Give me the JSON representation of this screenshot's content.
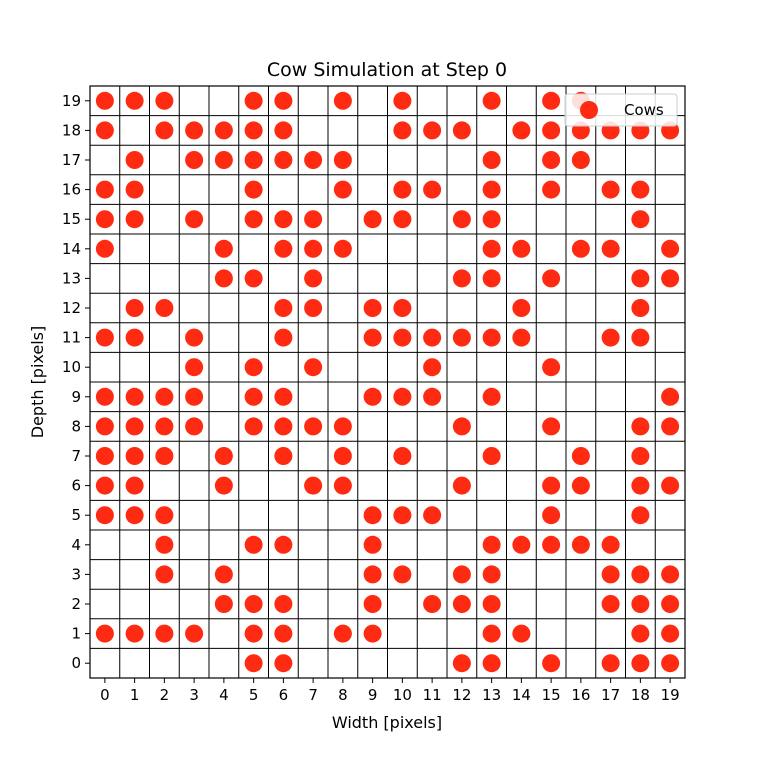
{
  "chart_data": {
    "type": "scatter",
    "title": "Cow Simulation at Step 0",
    "xlabel": "Width [pixels]",
    "ylabel": "Depth [pixels]",
    "xlim": [
      -0.5,
      19.5
    ],
    "ylim": [
      -0.5,
      19.5
    ],
    "xticks": [
      0,
      1,
      2,
      3,
      4,
      5,
      6,
      7,
      8,
      9,
      10,
      11,
      12,
      13,
      14,
      15,
      16,
      17,
      18,
      19
    ],
    "yticks": [
      0,
      1,
      2,
      3,
      4,
      5,
      6,
      7,
      8,
      9,
      10,
      11,
      12,
      13,
      14,
      15,
      16,
      17,
      18,
      19
    ],
    "grid": true,
    "legend_position": "top-right",
    "marker_color": "#ff2a12",
    "series": [
      {
        "name": "Cows",
        "points": [
          [
            0,
            19
          ],
          [
            1,
            19
          ],
          [
            2,
            19
          ],
          [
            5,
            19
          ],
          [
            6,
            19
          ],
          [
            8,
            19
          ],
          [
            10,
            19
          ],
          [
            13,
            19
          ],
          [
            15,
            19
          ],
          [
            16,
            19
          ],
          [
            0,
            18
          ],
          [
            2,
            18
          ],
          [
            3,
            18
          ],
          [
            4,
            18
          ],
          [
            5,
            18
          ],
          [
            6,
            18
          ],
          [
            10,
            18
          ],
          [
            11,
            18
          ],
          [
            12,
            18
          ],
          [
            14,
            18
          ],
          [
            15,
            18
          ],
          [
            16,
            18
          ],
          [
            17,
            18
          ],
          [
            18,
            18
          ],
          [
            19,
            18
          ],
          [
            1,
            17
          ],
          [
            3,
            17
          ],
          [
            4,
            17
          ],
          [
            5,
            17
          ],
          [
            6,
            17
          ],
          [
            7,
            17
          ],
          [
            8,
            17
          ],
          [
            13,
            17
          ],
          [
            15,
            17
          ],
          [
            16,
            17
          ],
          [
            0,
            16
          ],
          [
            1,
            16
          ],
          [
            5,
            16
          ],
          [
            8,
            16
          ],
          [
            10,
            16
          ],
          [
            11,
            16
          ],
          [
            13,
            16
          ],
          [
            15,
            16
          ],
          [
            17,
            16
          ],
          [
            18,
            16
          ],
          [
            0,
            15
          ],
          [
            1,
            15
          ],
          [
            3,
            15
          ],
          [
            5,
            15
          ],
          [
            6,
            15
          ],
          [
            7,
            15
          ],
          [
            9,
            15
          ],
          [
            10,
            15
          ],
          [
            12,
            15
          ],
          [
            13,
            15
          ],
          [
            18,
            15
          ],
          [
            0,
            14
          ],
          [
            4,
            14
          ],
          [
            6,
            14
          ],
          [
            7,
            14
          ],
          [
            8,
            14
          ],
          [
            13,
            14
          ],
          [
            14,
            14
          ],
          [
            16,
            14
          ],
          [
            17,
            14
          ],
          [
            19,
            14
          ],
          [
            4,
            13
          ],
          [
            5,
            13
          ],
          [
            7,
            13
          ],
          [
            12,
            13
          ],
          [
            13,
            13
          ],
          [
            15,
            13
          ],
          [
            18,
            13
          ],
          [
            19,
            13
          ],
          [
            1,
            12
          ],
          [
            2,
            12
          ],
          [
            6,
            12
          ],
          [
            7,
            12
          ],
          [
            9,
            12
          ],
          [
            10,
            12
          ],
          [
            14,
            12
          ],
          [
            18,
            12
          ],
          [
            0,
            11
          ],
          [
            1,
            11
          ],
          [
            3,
            11
          ],
          [
            6,
            11
          ],
          [
            9,
            11
          ],
          [
            10,
            11
          ],
          [
            11,
            11
          ],
          [
            12,
            11
          ],
          [
            13,
            11
          ],
          [
            14,
            11
          ],
          [
            17,
            11
          ],
          [
            18,
            11
          ],
          [
            3,
            10
          ],
          [
            5,
            10
          ],
          [
            7,
            10
          ],
          [
            11,
            10
          ],
          [
            15,
            10
          ],
          [
            0,
            9
          ],
          [
            1,
            9
          ],
          [
            2,
            9
          ],
          [
            3,
            9
          ],
          [
            5,
            9
          ],
          [
            6,
            9
          ],
          [
            9,
            9
          ],
          [
            10,
            9
          ],
          [
            11,
            9
          ],
          [
            13,
            9
          ],
          [
            19,
            9
          ],
          [
            0,
            8
          ],
          [
            1,
            8
          ],
          [
            2,
            8
          ],
          [
            3,
            8
          ],
          [
            5,
            8
          ],
          [
            6,
            8
          ],
          [
            7,
            8
          ],
          [
            8,
            8
          ],
          [
            12,
            8
          ],
          [
            15,
            8
          ],
          [
            18,
            8
          ],
          [
            19,
            8
          ],
          [
            0,
            7
          ],
          [
            1,
            7
          ],
          [
            2,
            7
          ],
          [
            4,
            7
          ],
          [
            6,
            7
          ],
          [
            8,
            7
          ],
          [
            10,
            7
          ],
          [
            13,
            7
          ],
          [
            16,
            7
          ],
          [
            18,
            7
          ],
          [
            0,
            6
          ],
          [
            1,
            6
          ],
          [
            4,
            6
          ],
          [
            7,
            6
          ],
          [
            8,
            6
          ],
          [
            12,
            6
          ],
          [
            15,
            6
          ],
          [
            16,
            6
          ],
          [
            18,
            6
          ],
          [
            19,
            6
          ],
          [
            0,
            5
          ],
          [
            1,
            5
          ],
          [
            2,
            5
          ],
          [
            9,
            5
          ],
          [
            10,
            5
          ],
          [
            11,
            5
          ],
          [
            15,
            5
          ],
          [
            18,
            5
          ],
          [
            2,
            4
          ],
          [
            5,
            4
          ],
          [
            6,
            4
          ],
          [
            9,
            4
          ],
          [
            13,
            4
          ],
          [
            14,
            4
          ],
          [
            15,
            4
          ],
          [
            16,
            4
          ],
          [
            17,
            4
          ],
          [
            2,
            3
          ],
          [
            4,
            3
          ],
          [
            9,
            3
          ],
          [
            10,
            3
          ],
          [
            12,
            3
          ],
          [
            13,
            3
          ],
          [
            17,
            3
          ],
          [
            18,
            3
          ],
          [
            19,
            3
          ],
          [
            4,
            2
          ],
          [
            5,
            2
          ],
          [
            6,
            2
          ],
          [
            9,
            2
          ],
          [
            11,
            2
          ],
          [
            12,
            2
          ],
          [
            13,
            2
          ],
          [
            17,
            2
          ],
          [
            18,
            2
          ],
          [
            19,
            2
          ],
          [
            0,
            1
          ],
          [
            1,
            1
          ],
          [
            2,
            1
          ],
          [
            3,
            1
          ],
          [
            5,
            1
          ],
          [
            6,
            1
          ],
          [
            8,
            1
          ],
          [
            9,
            1
          ],
          [
            13,
            1
          ],
          [
            14,
            1
          ],
          [
            18,
            1
          ],
          [
            19,
            1
          ],
          [
            5,
            0
          ],
          [
            6,
            0
          ],
          [
            12,
            0
          ],
          [
            13,
            0
          ],
          [
            15,
            0
          ],
          [
            17,
            0
          ],
          [
            18,
            0
          ],
          [
            19,
            0
          ]
        ]
      }
    ]
  }
}
